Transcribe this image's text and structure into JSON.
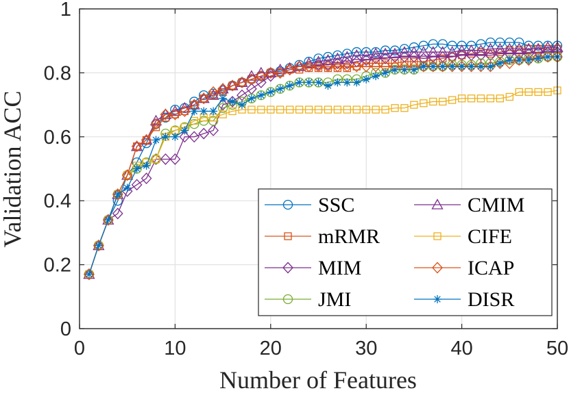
{
  "chart_data": {
    "type": "line",
    "title": "",
    "xlabel": "Number of Features",
    "ylabel": "Validation ACC",
    "xlim": [
      0,
      50
    ],
    "ylim": [
      0,
      1
    ],
    "xticks": [
      0,
      10,
      20,
      30,
      40,
      50
    ],
    "yticks": [
      0,
      0.2,
      0.4,
      0.6,
      0.8,
      1
    ],
    "xtick_labels": [
      "0",
      "10",
      "20",
      "30",
      "40",
      "50"
    ],
    "ytick_labels": [
      "0",
      "0.2",
      "0.4",
      "0.6",
      "0.8",
      "1"
    ],
    "grid": true,
    "legend_position": "bottom-right",
    "x": [
      1,
      2,
      3,
      4,
      5,
      6,
      7,
      8,
      9,
      10,
      11,
      12,
      13,
      14,
      15,
      16,
      17,
      18,
      19,
      20,
      21,
      22,
      23,
      24,
      25,
      26,
      27,
      28,
      29,
      30,
      31,
      32,
      33,
      34,
      35,
      36,
      37,
      38,
      39,
      40,
      41,
      42,
      43,
      44,
      45,
      46,
      47,
      48,
      49,
      50
    ],
    "series": [
      {
        "name": "SSC",
        "color": "#0072BD",
        "marker": "circle",
        "values": [
          0.17,
          0.26,
          0.34,
          0.4,
          0.48,
          0.52,
          0.58,
          0.64,
          0.66,
          0.685,
          0.69,
          0.71,
          0.73,
          0.735,
          0.745,
          0.76,
          0.77,
          0.78,
          0.79,
          0.8,
          0.805,
          0.815,
          0.825,
          0.835,
          0.845,
          0.85,
          0.855,
          0.86,
          0.865,
          0.865,
          0.865,
          0.87,
          0.87,
          0.875,
          0.88,
          0.885,
          0.89,
          0.89,
          0.885,
          0.885,
          0.885,
          0.89,
          0.895,
          0.895,
          0.895,
          0.895,
          0.885,
          0.885,
          0.885,
          0.885
        ]
      },
      {
        "name": "mRMR",
        "color": "#D95319",
        "marker": "square",
        "values": [
          0.17,
          0.26,
          0.34,
          0.42,
          0.48,
          0.57,
          0.59,
          0.63,
          0.66,
          0.67,
          0.68,
          0.7,
          0.72,
          0.73,
          0.74,
          0.76,
          0.77,
          0.78,
          0.79,
          0.8,
          0.8,
          0.81,
          0.81,
          0.815,
          0.815,
          0.815,
          0.815,
          0.815,
          0.82,
          0.83,
          0.83,
          0.83,
          0.83,
          0.835,
          0.835,
          0.835,
          0.84,
          0.845,
          0.85,
          0.855,
          0.86,
          0.865,
          0.86,
          0.865,
          0.87,
          0.87,
          0.875,
          0.875,
          0.875,
          0.875
        ]
      },
      {
        "name": "MIM",
        "color": "#7E2F8E",
        "marker": "diamond",
        "values": [
          0.17,
          0.26,
          0.34,
          0.36,
          0.43,
          0.45,
          0.47,
          0.53,
          0.53,
          0.53,
          0.6,
          0.6,
          0.61,
          0.62,
          0.7,
          0.71,
          0.73,
          0.75,
          0.77,
          0.79,
          0.8,
          0.81,
          0.82,
          0.82,
          0.825,
          0.825,
          0.83,
          0.83,
          0.835,
          0.84,
          0.845,
          0.845,
          0.85,
          0.85,
          0.85,
          0.845,
          0.85,
          0.85,
          0.85,
          0.855,
          0.855,
          0.855,
          0.855,
          0.86,
          0.86,
          0.86,
          0.86,
          0.865,
          0.865,
          0.865
        ]
      },
      {
        "name": "JMI",
        "color": "#77AC30",
        "marker": "circle",
        "values": [
          0.17,
          0.26,
          0.34,
          0.42,
          0.48,
          0.5,
          0.52,
          0.53,
          0.61,
          0.62,
          0.63,
          0.64,
          0.65,
          0.65,
          0.69,
          0.7,
          0.71,
          0.72,
          0.73,
          0.74,
          0.75,
          0.76,
          0.77,
          0.77,
          0.77,
          0.77,
          0.78,
          0.78,
          0.78,
          0.79,
          0.8,
          0.8,
          0.81,
          0.81,
          0.81,
          0.82,
          0.82,
          0.82,
          0.825,
          0.825,
          0.825,
          0.83,
          0.83,
          0.835,
          0.84,
          0.84,
          0.845,
          0.845,
          0.85,
          0.85
        ]
      },
      {
        "name": "CMIM",
        "color": "#7E2F8E",
        "marker": "triangle",
        "values": [
          0.17,
          0.26,
          0.34,
          0.42,
          0.48,
          0.57,
          0.59,
          0.65,
          0.67,
          0.68,
          0.69,
          0.7,
          0.72,
          0.73,
          0.75,
          0.76,
          0.77,
          0.79,
          0.8,
          0.8,
          0.81,
          0.815,
          0.82,
          0.83,
          0.835,
          0.84,
          0.845,
          0.85,
          0.855,
          0.855,
          0.86,
          0.86,
          0.86,
          0.865,
          0.865,
          0.865,
          0.865,
          0.865,
          0.865,
          0.87,
          0.87,
          0.87,
          0.875,
          0.875,
          0.875,
          0.875,
          0.875,
          0.875,
          0.88,
          0.88
        ]
      },
      {
        "name": "CIFE",
        "color": "#EDB120",
        "marker": "square",
        "values": [
          0.17,
          0.26,
          0.34,
          0.42,
          0.48,
          0.51,
          0.52,
          0.53,
          0.6,
          0.62,
          0.63,
          0.65,
          0.66,
          0.66,
          0.67,
          0.68,
          0.685,
          0.685,
          0.685,
          0.685,
          0.685,
          0.685,
          0.685,
          0.685,
          0.685,
          0.685,
          0.685,
          0.685,
          0.685,
          0.685,
          0.685,
          0.685,
          0.69,
          0.69,
          0.7,
          0.705,
          0.71,
          0.71,
          0.715,
          0.72,
          0.72,
          0.72,
          0.72,
          0.72,
          0.725,
          0.74,
          0.74,
          0.74,
          0.74,
          0.745
        ]
      },
      {
        "name": "ICAP",
        "color": "#D95319",
        "marker": "diamond",
        "values": [
          0.17,
          0.26,
          0.34,
          0.42,
          0.48,
          0.57,
          0.59,
          0.64,
          0.67,
          0.67,
          0.68,
          0.7,
          0.72,
          0.74,
          0.75,
          0.76,
          0.77,
          0.78,
          0.79,
          0.8,
          0.8,
          0.81,
          0.82,
          0.82,
          0.82,
          0.82,
          0.82,
          0.82,
          0.82,
          0.82,
          0.82,
          0.82,
          0.82,
          0.82,
          0.82,
          0.82,
          0.82,
          0.82,
          0.82,
          0.82,
          0.82,
          0.82,
          0.82,
          0.83,
          0.83,
          0.84,
          0.84,
          0.85,
          0.85,
          0.85
        ]
      },
      {
        "name": "DISR",
        "color": "#0072BD",
        "marker": "asterisk",
        "values": [
          0.17,
          0.26,
          0.34,
          0.42,
          0.44,
          0.5,
          0.51,
          0.59,
          0.6,
          0.6,
          0.62,
          0.68,
          0.68,
          0.68,
          0.72,
          0.71,
          0.7,
          0.72,
          0.73,
          0.74,
          0.75,
          0.76,
          0.77,
          0.77,
          0.77,
          0.76,
          0.77,
          0.77,
          0.77,
          0.78,
          0.79,
          0.8,
          0.81,
          0.81,
          0.81,
          0.82,
          0.82,
          0.82,
          0.82,
          0.82,
          0.82,
          0.82,
          0.82,
          0.83,
          0.84,
          0.84,
          0.84,
          0.845,
          0.85,
          0.85
        ]
      }
    ]
  }
}
